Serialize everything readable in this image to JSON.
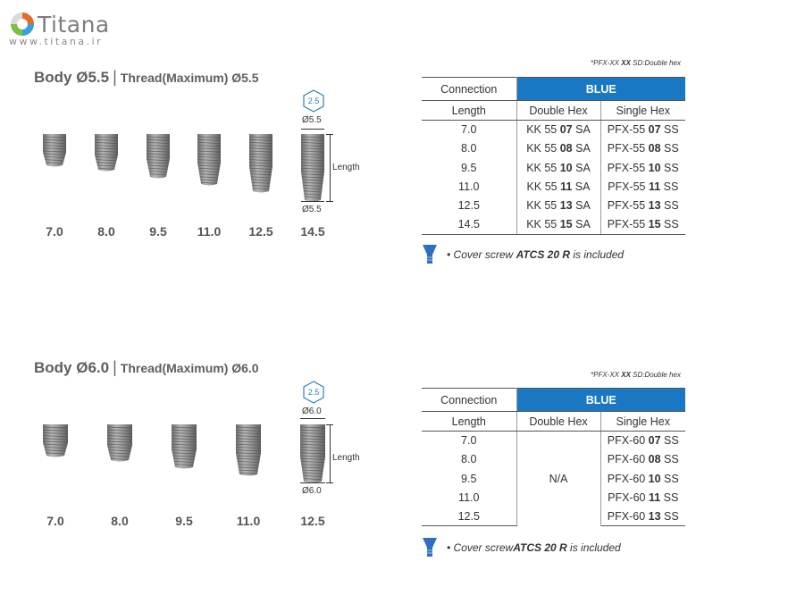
{
  "brand": {
    "name": "Titana",
    "url": "www.titana.ir"
  },
  "sections": [
    {
      "body": "Body Ø5.5",
      "separator": "|",
      "thread": "Thread(Maximum) Ø5.5",
      "lengths": [
        "7.0",
        "8.0",
        "9.5",
        "11.0",
        "12.5",
        "14.5"
      ],
      "hex_badge": "2.5",
      "diameter_top": "Ø5.5",
      "diameter_bottom": "Ø5.5",
      "length_label": "Length",
      "note_prefix": "*PFX-XX ",
      "note_bold": "XX",
      "note_suffix": " SD:Double hex",
      "table": {
        "col_connection": "Connection",
        "col_color": "BLUE",
        "col_length": "Length",
        "col_double": "Double Hex",
        "col_single": "Single Hex",
        "rows": [
          {
            "length": "7.0",
            "dh_pre": "KK 55 ",
            "dh_bold": "07",
            "dh_post": " SA",
            "sh_pre": "PFX-55 ",
            "sh_bold": "07",
            "sh_post": " SS"
          },
          {
            "length": "8.0",
            "dh_pre": "KK 55 ",
            "dh_bold": "08",
            "dh_post": " SA",
            "sh_pre": "PFX-55 ",
            "sh_bold": "08",
            "sh_post": " SS"
          },
          {
            "length": "9.5",
            "dh_pre": "KK 55 ",
            "dh_bold": "10",
            "dh_post": " SA",
            "sh_pre": "PFX-55 ",
            "sh_bold": "10",
            "sh_post": " SS"
          },
          {
            "length": "11.0",
            "dh_pre": "KK 55 ",
            "dh_bold": "11",
            "dh_post": " SA",
            "sh_pre": "PFX-55 ",
            "sh_bold": "11",
            "sh_post": " SS"
          },
          {
            "length": "12.5",
            "dh_pre": "KK 55 ",
            "dh_bold": "13",
            "dh_post": " SA",
            "sh_pre": "PFX-55 ",
            "sh_bold": "13",
            "sh_post": " SS"
          },
          {
            "length": "14.5",
            "dh_pre": "KK 55 ",
            "dh_bold": "15",
            "dh_post": " SA",
            "sh_pre": "PFX-55 ",
            "sh_bold": "15",
            "sh_post": " SS"
          }
        ]
      },
      "cover_pre": "• Cover screw ",
      "cover_bold": "ATCS 20 R",
      "cover_post": " is included"
    },
    {
      "body": "Body Ø6.0",
      "separator": "|",
      "thread": "Thread(Maximum) Ø6.0",
      "lengths": [
        "7.0",
        "8.0",
        "9.5",
        "11.0",
        "12.5"
      ],
      "hex_badge": "2.5",
      "diameter_top": "Ø6.0",
      "diameter_bottom": "Ø6.0",
      "length_label": "Length",
      "note_prefix": "*PFX-XX ",
      "note_bold": "XX",
      "note_suffix": " SD:Double hex",
      "table": {
        "col_connection": "Connection",
        "col_color": "BLUE",
        "col_length": "Length",
        "col_double": "Double Hex",
        "col_single": "Single Hex",
        "na": "N/A",
        "rows": [
          {
            "length": "7.0",
            "sh_pre": "PFX-60 ",
            "sh_bold": "07",
            "sh_post": " SS"
          },
          {
            "length": "8.0",
            "sh_pre": "PFX-60 ",
            "sh_bold": "08",
            "sh_post": " SS"
          },
          {
            "length": "9.5",
            "sh_pre": "PFX-60 ",
            "sh_bold": "10",
            "sh_post": " SS"
          },
          {
            "length": "11.0",
            "sh_pre": "PFX-60 ",
            "sh_bold": "11",
            "sh_post": " SS"
          },
          {
            "length": "12.5",
            "sh_pre": "PFX-60 ",
            "sh_bold": "13",
            "sh_post": " SS"
          }
        ]
      },
      "cover_pre": "• Cover screw",
      "cover_bold": "ATCS 20 R",
      "cover_post": " is included"
    }
  ],
  "colors": {
    "accent_blue": "#1a78c2",
    "badge_blue": "#2e7fbd",
    "implant_gray": "#8e8e8e"
  }
}
